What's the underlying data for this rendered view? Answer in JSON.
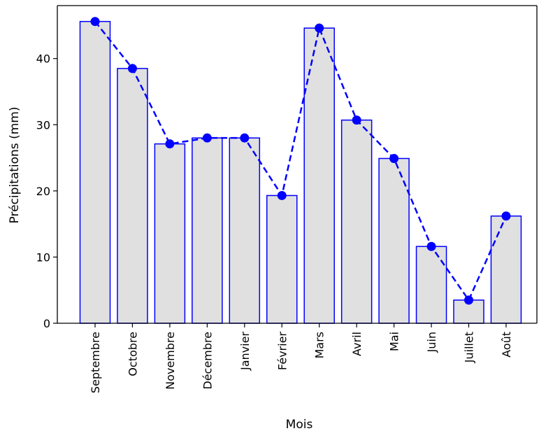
{
  "chart_data": {
    "type": "bar",
    "categories": [
      "Septembre",
      "Octobre",
      "Novembre",
      "Décembre",
      "Janvier",
      "Février",
      "Mars",
      "Avril",
      "Mai",
      "Juin",
      "Juillet",
      "Août"
    ],
    "values": [
      45.6,
      38.5,
      27.1,
      28.0,
      28.0,
      19.3,
      44.6,
      30.7,
      24.9,
      11.6,
      3.5,
      16.2
    ],
    "xlabel": "Mois",
    "ylabel": "Précipitations (mm)",
    "ylim": [
      0,
      48
    ],
    "yticks": [
      0,
      10,
      20,
      30,
      40
    ],
    "grid": false,
    "overlay_line": {
      "style": "dashed",
      "markers": "circle"
    },
    "colors": {
      "bar_fill": "#e0e0e0",
      "bar_edge": "#0000ff",
      "line": "#0000ff",
      "marker": "#0000ff"
    }
  }
}
